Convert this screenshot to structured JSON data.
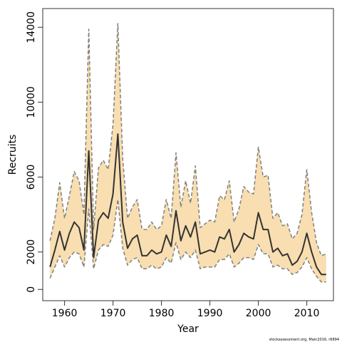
{
  "chart_data": {
    "type": "area",
    "title": "",
    "xlabel": "Year",
    "ylabel": "Recruits",
    "xlim": [
      1955.5,
      2015.5
    ],
    "ylim": [
      -600,
      15000
    ],
    "x_ticks": [
      1960,
      1970,
      1980,
      1990,
      2000,
      2010
    ],
    "y_ticks": [
      0,
      2000,
      6000,
      10000,
      14000
    ],
    "grid": false,
    "legend": "none",
    "colors": {
      "band": "#f8deb0",
      "bound_line": "#808080",
      "median_line": "#333333"
    },
    "x": [
      1957,
      1958,
      1959,
      1960,
      1961,
      1962,
      1963,
      1964,
      1965,
      1966,
      1967,
      1968,
      1969,
      1970,
      1971,
      1972,
      1973,
      1974,
      1975,
      1976,
      1977,
      1978,
      1979,
      1980,
      1981,
      1982,
      1983,
      1984,
      1985,
      1986,
      1987,
      1988,
      1989,
      1990,
      1991,
      1992,
      1993,
      1994,
      1995,
      1996,
      1997,
      1998,
      1999,
      2000,
      2001,
      2002,
      2003,
      2004,
      2005,
      2006,
      2007,
      2008,
      2009,
      2010,
      2011,
      2012,
      2013,
      2014
    ],
    "series": [
      {
        "role": "median",
        "values": [
          1200,
          2100,
          3100,
          2100,
          3000,
          3600,
          3300,
          2100,
          7400,
          1700,
          3700,
          4100,
          3800,
          5100,
          8300,
          3600,
          2200,
          2700,
          2900,
          1800,
          1800,
          2100,
          1900,
          2000,
          2900,
          2300,
          4200,
          2600,
          3400,
          2800,
          3600,
          1900,
          2000,
          2100,
          2000,
          2800,
          2700,
          3200,
          2000,
          2400,
          3000,
          2800,
          2700,
          4100,
          3200,
          3200,
          2000,
          2200,
          1800,
          1900,
          1300,
          1500,
          2000,
          3000,
          2000,
          1200,
          800,
          800
        ]
      },
      {
        "role": "upper",
        "values": [
          2600,
          3800,
          5700,
          3800,
          5000,
          6300,
          5800,
          4000,
          13900,
          3200,
          6500,
          6900,
          6400,
          8800,
          14200,
          7000,
          3800,
          4400,
          4800,
          3200,
          3200,
          3600,
          3200,
          3400,
          4800,
          3800,
          7300,
          4400,
          5800,
          4600,
          6600,
          3300,
          3500,
          3700,
          3600,
          5000,
          4800,
          5800,
          3600,
          4300,
          5500,
          5200,
          5100,
          7600,
          6000,
          6100,
          3800,
          4100,
          3400,
          3500,
          2700,
          3000,
          4000,
          6400,
          4100,
          2500,
          1800,
          1900
        ]
      },
      {
        "role": "lower",
        "values": [
          600,
          1200,
          1800,
          1200,
          1700,
          2000,
          1900,
          1200,
          4300,
          1100,
          2100,
          2400,
          2300,
          2900,
          4800,
          2200,
          1300,
          1600,
          1700,
          1100,
          1100,
          1300,
          1100,
          1200,
          1700,
          1400,
          2500,
          1600,
          2000,
          1700,
          2100,
          1100,
          1200,
          1200,
          1200,
          1600,
          1600,
          1900,
          1200,
          1400,
          1700,
          1700,
          1600,
          2400,
          1900,
          1900,
          1200,
          1300,
          1100,
          1100,
          800,
          900,
          1200,
          1700,
          1100,
          700,
          400,
          400
        ]
      }
    ]
  },
  "credit": "stockassessment.org, Main2016, r6894"
}
